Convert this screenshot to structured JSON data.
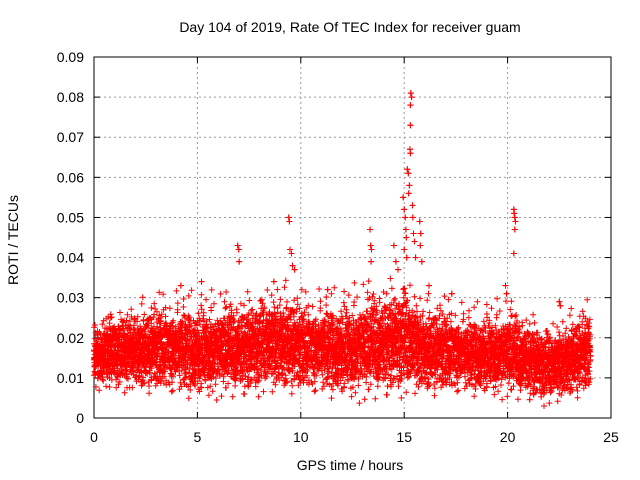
{
  "chart_data": {
    "type": "scatter",
    "title": "Day 104 of 2019, Rate Of TEC Index for receiver guam",
    "xlabel": "GPS time / hours",
    "ylabel": "ROTI / TECUs",
    "xlim": [
      0,
      25
    ],
    "ylim": [
      0,
      0.09
    ],
    "x_ticks": [
      0,
      5,
      10,
      15,
      20,
      25
    ],
    "x_tick_labels": [
      "0",
      "5",
      "10",
      "15",
      "20",
      "25"
    ],
    "y_ticks": [
      0,
      0.01,
      0.02,
      0.03,
      0.04,
      0.05,
      0.06,
      0.07,
      0.08,
      0.09
    ],
    "y_tick_labels": [
      "0",
      "0.01",
      "0.02",
      "0.03",
      "0.04",
      "0.05",
      "0.06",
      "0.07",
      "0.08",
      "0.09"
    ],
    "grid": true,
    "marker": "+",
    "color": "#ff0000",
    "series": [
      {
        "name": "ROTI",
        "background": {
          "x_range": [
            0,
            24
          ],
          "step_hours": 0.02,
          "band_low": [
            [
              0,
              0.006
            ],
            [
              3,
              0.005
            ],
            [
              5,
              0.004
            ],
            [
              7,
              0.004
            ],
            [
              10,
              0.005
            ],
            [
              12,
              0.004
            ],
            [
              13,
              0.003
            ],
            [
              15,
              0.004
            ],
            [
              18,
              0.005
            ],
            [
              20,
              0.004
            ],
            [
              22,
              0.002
            ],
            [
              24,
              0.005
            ]
          ],
          "band_high": [
            [
              0,
              0.024
            ],
            [
              1,
              0.028
            ],
            [
              4,
              0.03
            ],
            [
              7,
              0.031
            ],
            [
              9,
              0.034
            ],
            [
              10,
              0.03
            ],
            [
              12,
              0.031
            ],
            [
              13,
              0.033
            ],
            [
              15,
              0.036
            ],
            [
              16,
              0.03
            ],
            [
              18,
              0.027
            ],
            [
              20,
              0.029
            ],
            [
              22,
              0.024
            ],
            [
              24,
              0.028
            ]
          ]
        },
        "points": [
          [
            6.95,
            0.043
          ],
          [
            7.0,
            0.042
          ],
          [
            7.02,
            0.039
          ],
          [
            9.42,
            0.05
          ],
          [
            9.45,
            0.049
          ],
          [
            9.48,
            0.042
          ],
          [
            9.55,
            0.041
          ],
          [
            9.6,
            0.038
          ],
          [
            9.7,
            0.037
          ],
          [
            13.35,
            0.047
          ],
          [
            13.38,
            0.043
          ],
          [
            13.42,
            0.042
          ],
          [
            13.4,
            0.039
          ],
          [
            14.5,
            0.043
          ],
          [
            14.6,
            0.039
          ],
          [
            14.7,
            0.037
          ],
          [
            14.95,
            0.055
          ],
          [
            15.0,
            0.052
          ],
          [
            15.05,
            0.05
          ],
          [
            15.08,
            0.047
          ],
          [
            15.1,
            0.045
          ],
          [
            15.0,
            0.042
          ],
          [
            15.12,
            0.04
          ],
          [
            15.15,
            0.062
          ],
          [
            15.2,
            0.061
          ],
          [
            15.25,
            0.058
          ],
          [
            15.22,
            0.056
          ],
          [
            15.28,
            0.067
          ],
          [
            15.3,
            0.066
          ],
          [
            15.3,
            0.073
          ],
          [
            15.3,
            0.078
          ],
          [
            15.32,
            0.081
          ],
          [
            15.36,
            0.08
          ],
          [
            15.4,
            0.053
          ],
          [
            15.42,
            0.05
          ],
          [
            15.45,
            0.046
          ],
          [
            15.5,
            0.044
          ],
          [
            15.55,
            0.04
          ],
          [
            15.75,
            0.049
          ],
          [
            15.8,
            0.046
          ],
          [
            15.78,
            0.043
          ],
          [
            15.85,
            0.039
          ],
          [
            20.3,
            0.052
          ],
          [
            20.32,
            0.051
          ],
          [
            20.35,
            0.05
          ],
          [
            20.38,
            0.049
          ],
          [
            20.35,
            0.047
          ],
          [
            20.3,
            0.041
          ],
          [
            19.9,
            0.033
          ],
          [
            19.95,
            0.031
          ],
          [
            22.5,
            0.029
          ],
          [
            22.55,
            0.028
          ],
          [
            4.2,
            0.033
          ],
          [
            5.2,
            0.034
          ],
          [
            8.7,
            0.034
          ],
          [
            11.3,
            0.032
          ],
          [
            16.2,
            0.033
          ],
          [
            17.3,
            0.031
          ]
        ]
      }
    ]
  }
}
